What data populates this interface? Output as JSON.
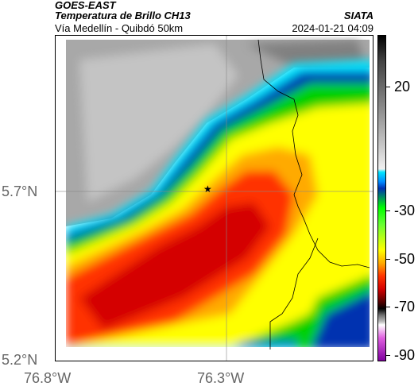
{
  "header": {
    "satellite": "GOES-EAST",
    "product": "Temperatura de Brillo CH13",
    "route": "Vía Medellín - Quibdó 50km",
    "org": "SIATA",
    "datetime": "2024-01-21 04:09"
  },
  "axes": {
    "lat_labels": [
      "5.7°N",
      "5.2°N"
    ],
    "lon_labels": [
      "76.8°W",
      "76.3°W"
    ]
  },
  "colorbar": {
    "ticks": [
      "20",
      "-30",
      "-50",
      "-70",
      "-90"
    ],
    "units": "",
    "colors": {
      "warm": "#b0b0b0",
      "cold_core": "#d40000",
      "edge": "#00e5ff"
    }
  },
  "marker": {
    "symbol": "★"
  }
}
